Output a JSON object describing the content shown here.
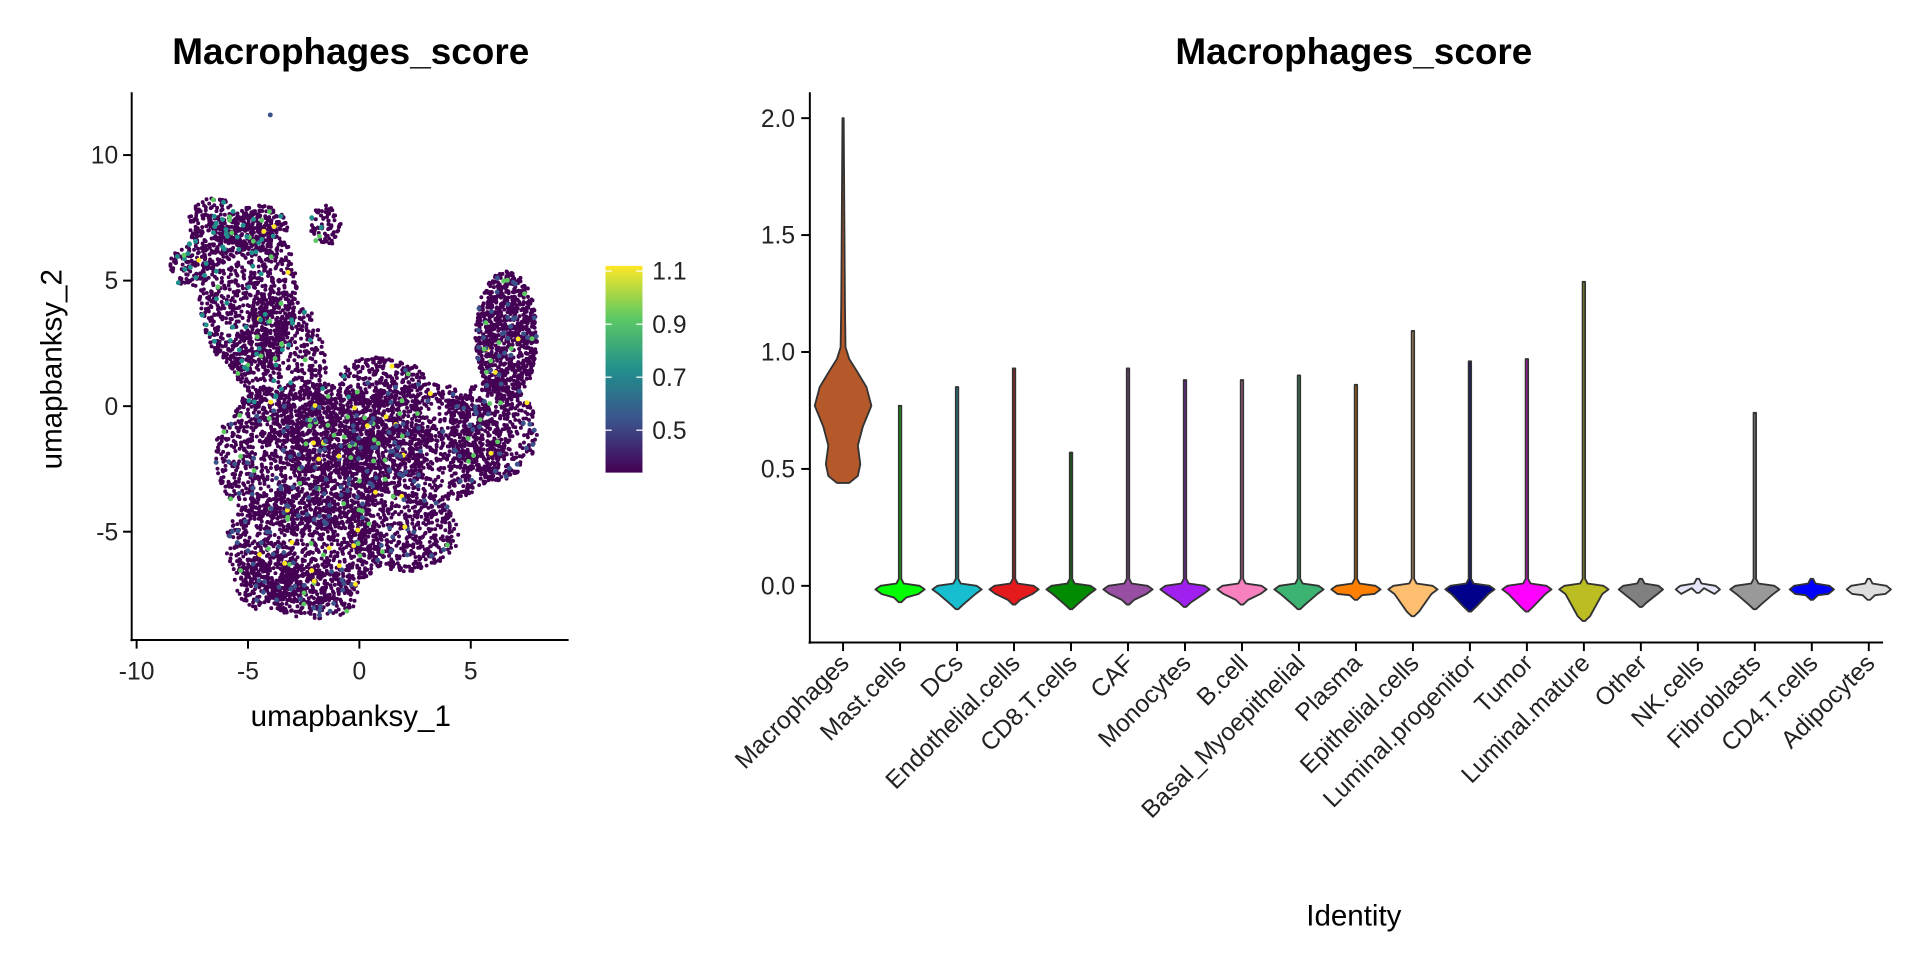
{
  "chart_data": [
    {
      "type": "scatter",
      "title": "Macrophages_score",
      "xlabel": "umapbanksy_1",
      "ylabel": "umapbanksy_2",
      "xlim": [
        -10,
        9.5
      ],
      "ylim": [
        -9,
        12.7
      ],
      "xticks": [
        -10,
        -5,
        0,
        5
      ],
      "yticks": [
        -5,
        0,
        5,
        10
      ],
      "grid": false,
      "colorbar": {
        "position": "right",
        "palette": "viridis",
        "range": [
          0.34,
          1.12
        ],
        "ticks": [
          0.5,
          0.7,
          0.9,
          1.1
        ],
        "colors": [
          "#440154",
          "#3b528b",
          "#21908c",
          "#5dc963",
          "#fde725"
        ]
      }
    },
    {
      "type": "violin",
      "title": "Macrophages_score",
      "xlabel": "Identity",
      "ylabel": "",
      "ylim": [
        -0.24,
        2.11
      ],
      "yticks": [
        0.0,
        0.5,
        1.0,
        1.5,
        2.0
      ],
      "grid": false,
      "categories": [
        "Macrophages",
        "Mast.cells",
        "DCs",
        "Endothelial.cells",
        "CD8.T.cells",
        "CAF",
        "Monocytes",
        "B.cell",
        "Basal_Myoepithelial",
        "Plasma",
        "Epithelial.cells",
        "Luminal.progenitor",
        "Tumor",
        "Luminal.mature",
        "Other",
        "NK.cells",
        "Fibroblasts",
        "CD4.T.cells",
        "Adipocytes"
      ],
      "series": [
        {
          "min": 0.44,
          "max": 2.0,
          "color": "#b5582a"
        },
        {
          "min": -0.07,
          "max": 0.77,
          "color": "#00ff00"
        },
        {
          "min": -0.1,
          "max": 0.85,
          "color": "#17becf"
        },
        {
          "min": -0.08,
          "max": 0.93,
          "color": "#e41a1c"
        },
        {
          "min": -0.1,
          "max": 0.57,
          "color": "#008b00"
        },
        {
          "min": -0.08,
          "max": 0.93,
          "color": "#984ea3"
        },
        {
          "min": -0.09,
          "max": 0.88,
          "color": "#a020f0"
        },
        {
          "min": -0.08,
          "max": 0.88,
          "color": "#f781bf"
        },
        {
          "min": -0.1,
          "max": 0.9,
          "color": "#3cb371"
        },
        {
          "min": -0.06,
          "max": 0.86,
          "color": "#ff7f00"
        },
        {
          "min": -0.13,
          "max": 1.09,
          "color": "#fdbf6f"
        },
        {
          "min": -0.11,
          "max": 0.96,
          "color": "#00008b"
        },
        {
          "min": -0.11,
          "max": 0.97,
          "color": "#ff00ff"
        },
        {
          "min": -0.15,
          "max": 1.3,
          "color": "#bcbd22"
        },
        {
          "min": -0.09,
          "max": 0.0,
          "color": "#808080"
        },
        {
          "min": -0.03,
          "max": 0.0,
          "color": "#e6e6fa"
        },
        {
          "min": -0.1,
          "max": 0.74,
          "color": "#999999"
        },
        {
          "min": -0.06,
          "max": 0.0,
          "color": "#0000ff"
        },
        {
          "min": -0.06,
          "max": 0.0,
          "color": "#dddddd"
        }
      ]
    }
  ]
}
